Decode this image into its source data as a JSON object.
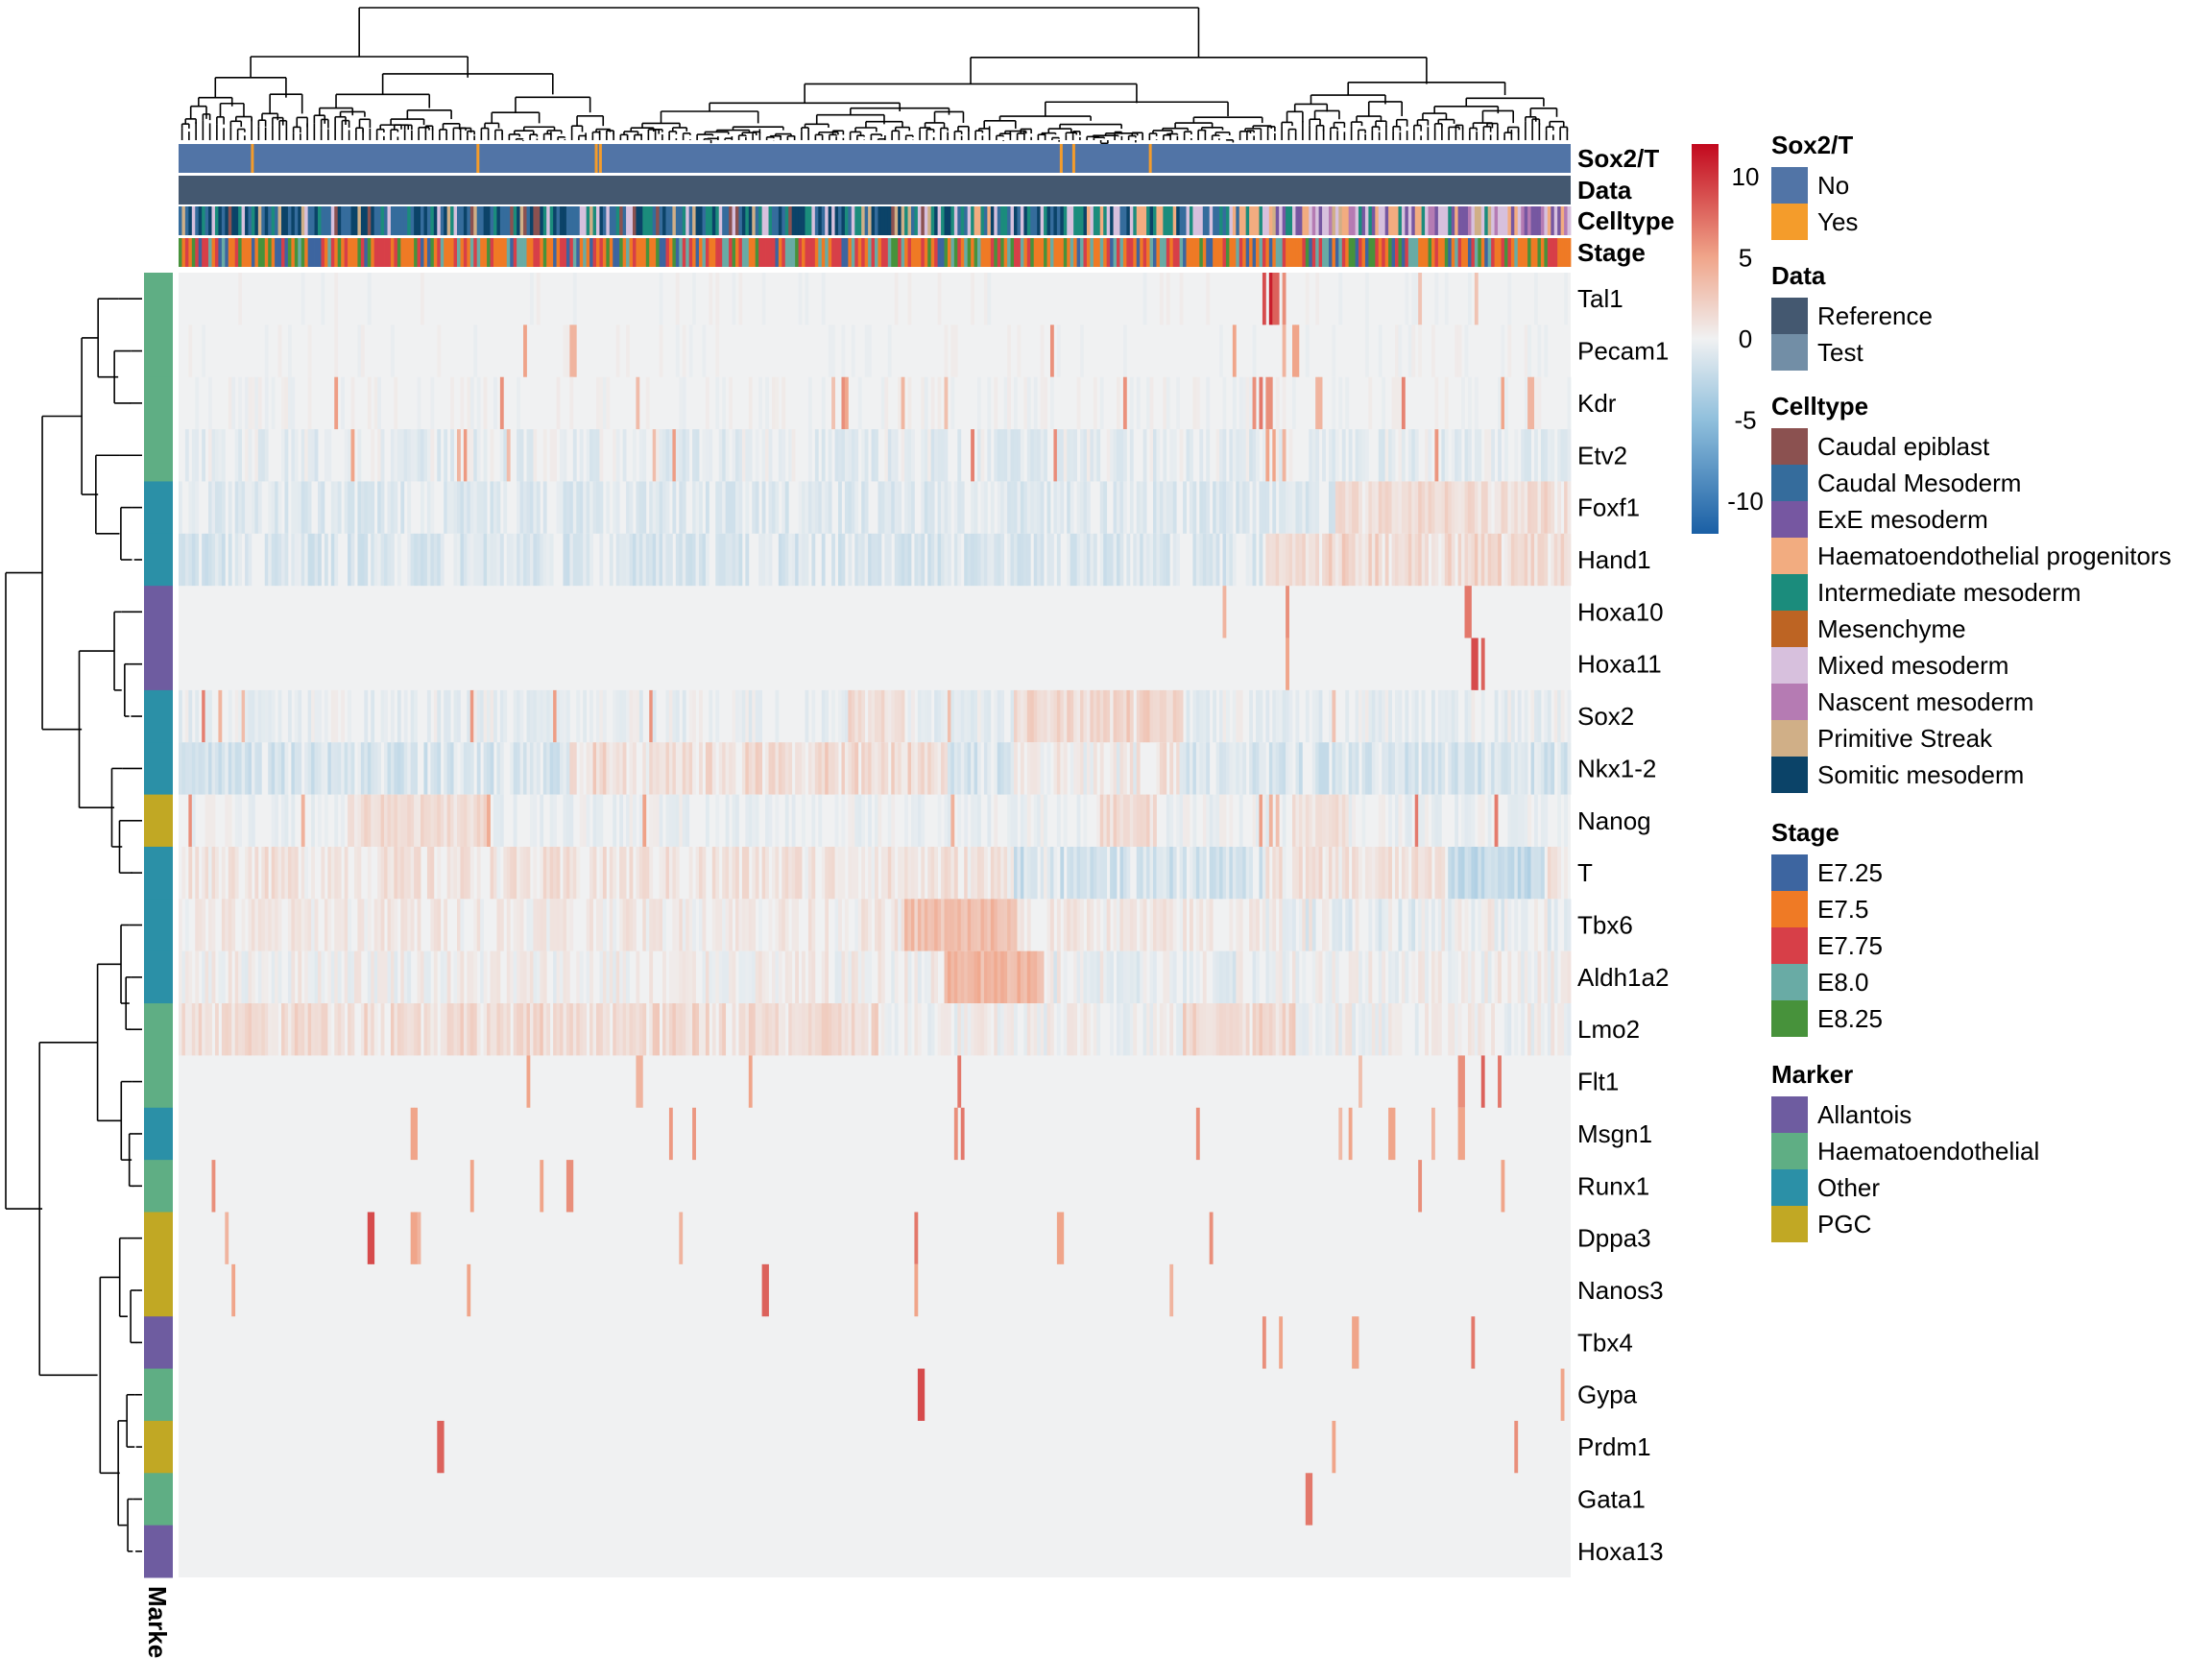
{
  "chart_data": {
    "type": "heatmap",
    "row_labels": [
      "Tal1",
      "Pecam1",
      "Kdr",
      "Etv2",
      "Foxf1",
      "Hand1",
      "Hoxa10",
      "Hoxa11",
      "Sox2",
      "Nkx1-2",
      "Nanog",
      "T",
      "Tbx6",
      "Aldh1a2",
      "Lmo2",
      "Flt1",
      "Msgn1",
      "Runx1",
      "Dppa3",
      "Nanos3",
      "Tbx4",
      "Gypa",
      "Prdm1",
      "Gata1",
      "Hoxa13"
    ],
    "row_marker": [
      "Haematoendothelial",
      "Haematoendothelial",
      "Haematoendothelial",
      "Haematoendothelial",
      "Other",
      "Other",
      "Allantois",
      "Allantois",
      "Other",
      "Other",
      "PGC",
      "Other",
      "Other",
      "Other",
      "Haematoendothelial",
      "Haematoendothelial",
      "Other",
      "Haematoendothelial",
      "PGC",
      "PGC",
      "Allantois",
      "Haematoendothelial",
      "PGC",
      "Haematoendothelial",
      "Allantois"
    ],
    "row_profiles": [
      {
        "base": 0.0,
        "noise": 0.4,
        "spikes": [
          [
            0.779,
            9
          ],
          [
            0.783,
            11
          ],
          [
            0.787,
            8
          ],
          [
            0.793,
            6
          ],
          [
            0.891,
            3
          ]
        ],
        "sparse": 0.004
      },
      {
        "base": 0.0,
        "noise": 0.4,
        "spikes": [
          [
            0.282,
            4
          ],
          [
            0.758,
            5
          ],
          [
            0.793,
            4
          ],
          [
            0.801,
            5
          ]
        ],
        "sparse": 0.003
      },
      {
        "base": 0.0,
        "noise": 0.5,
        "spikes": [
          [
            0.476,
            6
          ],
          [
            0.776,
            7
          ],
          [
            0.782,
            6
          ],
          [
            0.818,
            4
          ],
          [
            0.95,
            5
          ],
          [
            0.97,
            4
          ]
        ],
        "sparse": 0.02
      },
      {
        "base": -0.5,
        "noise": 1.0,
        "spikes": [
          [
            0.781,
            5
          ],
          [
            0.786,
            5
          ],
          [
            0.792,
            4
          ]
        ],
        "sparse": 0.03
      },
      {
        "base": -0.8,
        "noise": 1.0,
        "region": [
          [
            0.83,
            1.0,
            2.2
          ]
        ]
      },
      {
        "base": -1.0,
        "noise": 1.1,
        "region": [
          [
            0.78,
            1.0,
            2.5
          ]
        ]
      },
      {
        "base": 0.0,
        "noise": 0.3,
        "spikes": [
          [
            0.795,
            6
          ],
          [
            0.923,
            7
          ],
          [
            0.927,
            7
          ],
          [
            0.75,
            4
          ]
        ],
        "sparse": 0.003
      },
      {
        "base": 0.0,
        "noise": 0.3,
        "spikes": [
          [
            0.93,
            9
          ],
          [
            0.935,
            8
          ],
          [
            0.795,
            5
          ]
        ],
        "sparse": 0.002
      },
      {
        "base": -0.3,
        "noise": 0.9,
        "region": [
          [
            0.48,
            0.52,
            1.8
          ],
          [
            0.6,
            0.72,
            2.0
          ]
        ],
        "sparse": 0.02
      },
      {
        "base": -1.2,
        "noise": 1.2,
        "region": [
          [
            0.28,
            0.55,
            2.4
          ],
          [
            0.6,
            0.72,
            1.5
          ]
        ]
      },
      {
        "base": -0.2,
        "noise": 0.7,
        "region": [
          [
            0.12,
            0.22,
            1.5
          ],
          [
            0.66,
            0.7,
            1.8
          ],
          [
            0.8,
            0.84,
            1.5
          ]
        ],
        "sparse": 0.02
      },
      {
        "base": 0.8,
        "noise": 1.2,
        "region": [
          [
            0.6,
            0.78,
            -2.0
          ],
          [
            0.91,
            0.98,
            -3.0
          ]
        ]
      },
      {
        "base": 0.5,
        "noise": 1.0,
        "region": [
          [
            0.52,
            0.6,
            2.6
          ],
          [
            0.78,
            1.0,
            -0.7
          ]
        ]
      },
      {
        "base": 0.2,
        "noise": 1.1,
        "region": [
          [
            0.55,
            0.62,
            3.5
          ],
          [
            0.62,
            0.78,
            -0.4
          ]
        ]
      },
      {
        "base": 0.1,
        "noise": 1.1,
        "region": [
          [
            0.0,
            0.5,
            1.2
          ],
          [
            0.72,
            0.8,
            1.6
          ]
        ]
      },
      {
        "base": 0.0,
        "noise": 0.3,
        "spikes": [
          [
            0.25,
            5
          ],
          [
            0.56,
            7
          ],
          [
            0.92,
            6
          ],
          [
            0.935,
            8
          ],
          [
            0.948,
            7
          ],
          [
            0.33,
            4
          ],
          [
            0.41,
            5
          ]
        ],
        "sparse": 0.002
      },
      {
        "base": 0.0,
        "noise": 0.3,
        "spikes": [
          [
            0.168,
            5
          ],
          [
            0.558,
            6
          ],
          [
            0.562,
            7
          ],
          [
            0.84,
            5
          ],
          [
            0.87,
            5
          ],
          [
            0.9,
            4
          ],
          [
            0.92,
            5
          ]
        ],
        "sparse": 0.003
      },
      {
        "base": 0.0,
        "noise": 0.3,
        "spikes": [
          [
            0.024,
            6
          ],
          [
            0.21,
            5
          ],
          [
            0.26,
            5
          ],
          [
            0.28,
            6
          ],
          [
            0.89,
            6
          ],
          [
            0.95,
            5
          ]
        ],
        "sparse": 0.003
      },
      {
        "base": 0.0,
        "noise": 0.3,
        "spikes": [
          [
            0.034,
            4
          ],
          [
            0.137,
            9
          ],
          [
            0.168,
            5
          ],
          [
            0.36,
            4
          ],
          [
            0.529,
            7
          ],
          [
            0.632,
            5
          ],
          [
            0.172,
            4
          ]
        ],
        "sparse": 0.002
      },
      {
        "base": 0.0,
        "noise": 0.3,
        "spikes": [
          [
            0.038,
            5
          ],
          [
            0.207,
            5
          ],
          [
            0.42,
            8
          ],
          [
            0.528,
            5
          ],
          [
            0.712,
            4
          ]
        ],
        "sparse": 0.002
      },
      {
        "base": 0.0,
        "noise": 0.3,
        "spikes": [
          [
            0.779,
            6
          ],
          [
            0.791,
            5
          ],
          [
            0.844,
            5
          ],
          [
            0.928,
            7
          ]
        ],
        "sparse": 0.002
      },
      {
        "base": 0.0,
        "noise": 0.2,
        "spikes": [
          [
            0.532,
            9
          ],
          [
            0.993,
            5
          ]
        ],
        "sparse": 0.0
      },
      {
        "base": 0.0,
        "noise": 0.2,
        "spikes": [
          [
            0.187,
            8
          ],
          [
            0.829,
            5
          ],
          [
            0.96,
            6
          ]
        ],
        "sparse": 0.0
      },
      {
        "base": 0.0,
        "noise": 0.2,
        "spikes": [
          [
            0.811,
            7
          ]
        ],
        "sparse": 0.0
      },
      {
        "base": 0.0,
        "noise": 0.2,
        "spikes": [],
        "sparse": 0.0
      }
    ],
    "n_columns": 420,
    "column_annotations": [
      "Sox2/T",
      "Data",
      "Celltype",
      "Stage"
    ],
    "sox2t_yes_positions": [
      0.052,
      0.214,
      0.299,
      0.302,
      0.633,
      0.642,
      0.697
    ],
    "row_annotation_label": "Marker",
    "color_scale": {
      "min": -12,
      "max": 12,
      "ticks": [
        10,
        5,
        0,
        -5,
        -10
      ]
    },
    "palette": {
      "low": "#1a5fa5",
      "mid_low": "#8fbfdc",
      "neutral": "#f0f1f2",
      "mid_high": "#f0a58a",
      "high": "#c2081e"
    }
  },
  "legends": [
    {
      "title": "Sox2/T",
      "items": [
        {
          "label": "No",
          "color": "#5174a6"
        },
        {
          "label": "Yes",
          "color": "#f49c2b"
        }
      ]
    },
    {
      "title": "Data",
      "items": [
        {
          "label": "Reference",
          "color": "#445870"
        },
        {
          "label": "Test",
          "color": "#728ea6"
        }
      ]
    },
    {
      "title": "Celltype",
      "items": [
        {
          "label": "Caudal epiblast",
          "color": "#8b5150"
        },
        {
          "label": "Caudal Mesoderm",
          "color": "#356c9c"
        },
        {
          "label": "ExE mesoderm",
          "color": "#7657a1"
        },
        {
          "label": "Haematoendothelial progenitors",
          "color": "#f2ac80"
        },
        {
          "label": "Intermediate mesoderm",
          "color": "#1b8c7c"
        },
        {
          "label": "Mesenchyme",
          "color": "#bd6423"
        },
        {
          "label": "Mixed mesoderm",
          "color": "#d7c0dd"
        },
        {
          "label": "Nascent mesoderm",
          "color": "#b57bb3"
        },
        {
          "label": "Primitive Streak",
          "color": "#d0af87"
        },
        {
          "label": "Somitic mesoderm",
          "color": "#0b4368"
        }
      ]
    },
    {
      "title": "Stage",
      "items": [
        {
          "label": "E7.25",
          "color": "#3d65a0"
        },
        {
          "label": "E7.5",
          "color": "#ef7a25"
        },
        {
          "label": "E7.75",
          "color": "#d73f48"
        },
        {
          "label": "E8.0",
          "color": "#69aba5"
        },
        {
          "label": "E8.25",
          "color": "#47923b"
        }
      ]
    },
    {
      "title": "Marker",
      "items": [
        {
          "label": "Allantois",
          "color": "#6e5ca0"
        },
        {
          "label": "Haematoendothelial",
          "color": "#5fae84"
        },
        {
          "label": "Other",
          "color": "#2b90a7"
        },
        {
          "label": "PGC",
          "color": "#c1a824"
        }
      ]
    }
  ]
}
